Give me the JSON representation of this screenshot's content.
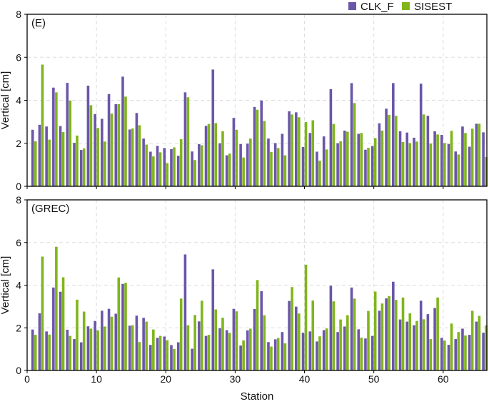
{
  "chart_data": {
    "type": "bar",
    "legend": {
      "placement": "top-right",
      "entries": [
        "CLK_F",
        "SISEST"
      ]
    },
    "colors": {
      "CLK_F": "#6b56a9",
      "SISEST": "#80b51c"
    },
    "xlabel": "Station",
    "xlim": [
      0,
      66.3
    ],
    "xticks": [
      0,
      10,
      20,
      30,
      40,
      50,
      60
    ],
    "grid": true,
    "panels": [
      {
        "label": "(E)",
        "ylabel": "Vertical [cm]",
        "ylim": [
          0,
          8
        ],
        "yticks": [
          0,
          2,
          4,
          6,
          8
        ],
        "series": [
          {
            "name": "CLK_F",
            "values": [
              2.63,
              2.86,
              2.78,
              4.59,
              2.8,
              4.81,
              2.02,
              1.69,
              4.68,
              3.36,
              3.14,
              4.29,
              3.82,
              5.1,
              2.64,
              3.41,
              2.22,
              1.61,
              1.88,
              1.78,
              1.73,
              1.42,
              4.37,
              1.62,
              1.96,
              2.81,
              5.43,
              2.0,
              1.44,
              3.18,
              1.96,
              1.98,
              3.69,
              3.99,
              2.22,
              2.01,
              2.44,
              3.49,
              3.44,
              1.83,
              2.48,
              1.61,
              2.32,
              4.52,
              2.0,
              2.59,
              4.8,
              2.44,
              1.7,
              1.87,
              2.93,
              3.61,
              4.8,
              2.56,
              2.5,
              2.26,
              4.77,
              3.28,
              2.56,
              2.39,
              1.97,
              1.62,
              2.78,
              1.84,
              2.91,
              2.51
            ]
          },
          {
            "name": "SISEST",
            "values": [
              2.09,
              5.66,
              2.17,
              4.37,
              2.52,
              3.99,
              2.36,
              1.76,
              3.77,
              2.71,
              2.08,
              3.38,
              3.82,
              4.17,
              2.69,
              2.84,
              1.94,
              1.39,
              1.58,
              1.08,
              1.81,
              2.19,
              4.14,
              1.22,
              1.91,
              2.9,
              2.94,
              2.56,
              1.52,
              2.63,
              1.34,
              2.22,
              3.56,
              3.04,
              1.6,
              1.78,
              1.44,
              3.34,
              3.21,
              2.99,
              3.07,
              1.19,
              1.71,
              2.9,
              2.09,
              2.54,
              3.87,
              2.48,
              1.79,
              2.24,
              2.59,
              3.32,
              3.28,
              2.06,
              2.01,
              2.08,
              3.34,
              1.99,
              2.41,
              2.01,
              2.58,
              1.48,
              2.48,
              2.68,
              2.91,
              1.36
            ]
          }
        ]
      },
      {
        "label": "(GREC)",
        "ylabel": "Vertical [cm]",
        "ylim": [
          0,
          8
        ],
        "yticks": [
          0,
          2,
          4,
          6,
          8
        ],
        "series": [
          {
            "name": "CLK_F",
            "values": [
              1.92,
              2.68,
              1.83,
              3.89,
              3.69,
              1.91,
              1.47,
              1.32,
              2.07,
              2.32,
              2.8,
              2.89,
              2.66,
              4.06,
              2.1,
              2.57,
              2.47,
              1.2,
              1.53,
              1.59,
              1.19,
              1.32,
              5.44,
              1.02,
              2.3,
              1.62,
              4.74,
              1.98,
              1.89,
              2.89,
              1.17,
              1.88,
              2.88,
              3.72,
              1.33,
              1.46,
              1.8,
              3.26,
              2.99,
              1.77,
              1.83,
              1.36,
              1.89,
              3.97,
              1.8,
              2.06,
              3.89,
              1.93,
              1.5,
              1.62,
              2.8,
              3.38,
              4.16,
              2.39,
              2.29,
              2.12,
              3.27,
              2.64,
              2.93,
              1.53,
              1.2,
              1.47,
              1.96,
              1.67,
              2.29,
              1.77
            ]
          },
          {
            "name": "SISEST",
            "values": [
              1.67,
              5.34,
              1.68,
              5.8,
              4.37,
              1.62,
              3.32,
              2.76,
              1.96,
              1.88,
              2.06,
              2.52,
              4.36,
              4.11,
              2.12,
              1.33,
              2.29,
              1.92,
              1.62,
              1.42,
              1.01,
              3.37,
              2.12,
              2.6,
              3.27,
              1.67,
              2.86,
              2.47,
              1.76,
              2.77,
              1.41,
              1.96,
              4.24,
              2.59,
              1.12,
              1.52,
              1.27,
              3.91,
              2.67,
              4.96,
              3.28,
              1.6,
              1.97,
              3.24,
              2.39,
              2.59,
              3.37,
              1.54,
              2.79,
              3.7,
              3.14,
              3.49,
              3.31,
              3.42,
              2.68,
              2.32,
              2.4,
              1.47,
              3.42,
              1.4,
              2.2,
              1.8,
              1.64,
              2.8,
              2.56,
              2.12
            ]
          }
        ]
      }
    ]
  }
}
